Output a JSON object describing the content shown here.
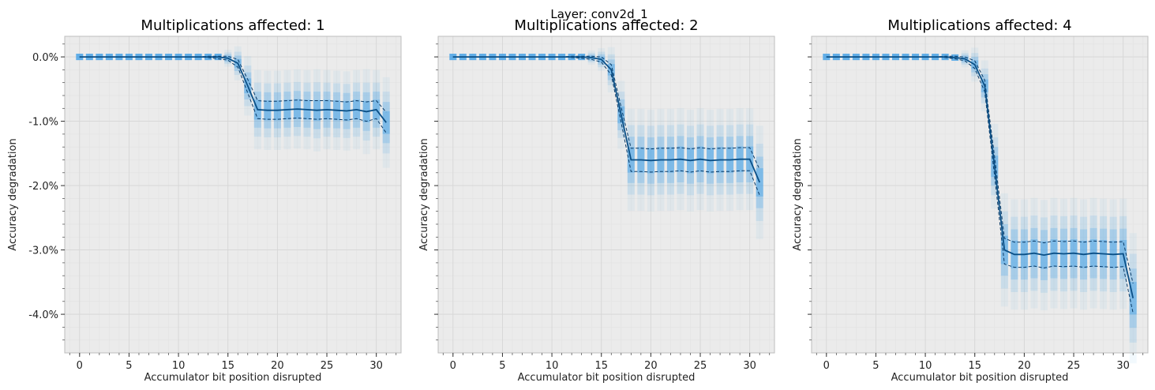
{
  "figure": {
    "suptitle": "Layer: conv2d_1"
  },
  "colors": {
    "background": "#ebebeb",
    "grid": "#d6d6d6",
    "mean_line": "#0a4f86",
    "bounds": "#0a3a66",
    "distribution": "#4aa3e6"
  },
  "chart_data": [
    {
      "type": "line",
      "title": "Multiplications affected: 1",
      "xlabel": "Accumulator bit position disrupted",
      "ylabel": "Accuracy degradation",
      "xlim": [
        -1.5,
        32.5
      ],
      "ylim": [
        -4.6,
        0.32
      ],
      "xticks": [
        0,
        5,
        10,
        15,
        20,
        25,
        30
      ],
      "yticks": [
        0.0,
        -1.0,
        -2.0,
        -3.0,
        -4.0
      ],
      "yticklabels": [
        "0.0%",
        "-1.0%",
        "-2.0%",
        "-3.0%",
        "-4.0%"
      ],
      "grid": true,
      "x": [
        0,
        1,
        2,
        3,
        4,
        5,
        6,
        7,
        8,
        9,
        10,
        11,
        12,
        13,
        14,
        15,
        16,
        17,
        18,
        19,
        20,
        21,
        22,
        23,
        24,
        25,
        26,
        27,
        28,
        29,
        30,
        31
      ],
      "series": [
        {
          "values": [
            0,
            0,
            0,
            0,
            0,
            0,
            0,
            0,
            0,
            0,
            0,
            0,
            0,
            0,
            0,
            -0.02,
            -0.1,
            -0.45,
            -0.82,
            -0.83,
            -0.83,
            -0.82,
            -0.81,
            -0.82,
            -0.83,
            -0.82,
            -0.83,
            -0.84,
            -0.82,
            -0.85,
            -0.82,
            -1.02
          ]
        },
        {
          "values": [
            0,
            0,
            0,
            0,
            0,
            0,
            0,
            0,
            0,
            0,
            0,
            0,
            0,
            0.01,
            0.01,
            0.01,
            -0.04,
            -0.35,
            -0.68,
            -0.69,
            -0.69,
            -0.68,
            -0.67,
            -0.68,
            -0.68,
            -0.68,
            -0.69,
            -0.7,
            -0.68,
            -0.7,
            -0.68,
            -0.86
          ]
        },
        {
          "values": [
            0,
            0,
            0,
            0,
            0,
            0,
            0,
            0,
            0,
            0,
            0,
            0,
            0,
            -0.01,
            -0.03,
            -0.05,
            -0.16,
            -0.56,
            -0.96,
            -0.97,
            -0.97,
            -0.96,
            -0.95,
            -0.96,
            -0.97,
            -0.96,
            -0.97,
            -0.98,
            -0.96,
            -1.0,
            -0.96,
            -1.18
          ]
        }
      ]
    },
    {
      "type": "line",
      "title": "Multiplications affected: 2",
      "xlabel": "Accumulator bit position disrupted",
      "ylabel": "Accuracy degradation",
      "xlim": [
        -1.5,
        32.5
      ],
      "ylim": [
        -4.6,
        0.32
      ],
      "xticks": [
        0,
        5,
        10,
        15,
        20,
        25,
        30
      ],
      "yticks": [
        0.0,
        -1.0,
        -2.0,
        -3.0,
        -4.0
      ],
      "yticklabels": [
        "0.0%",
        "-1.0%",
        "-2.0%",
        "-3.0%",
        "-4.0%"
      ],
      "grid": true,
      "x": [
        0,
        1,
        2,
        3,
        4,
        5,
        6,
        7,
        8,
        9,
        10,
        11,
        12,
        13,
        14,
        15,
        16,
        17,
        18,
        19,
        20,
        21,
        22,
        23,
        24,
        25,
        26,
        27,
        28,
        29,
        30,
        31
      ],
      "series": [
        {
          "values": [
            0,
            0,
            0,
            0,
            0,
            0,
            0,
            0,
            0,
            0,
            0,
            0,
            0,
            0,
            -0.01,
            -0.04,
            -0.2,
            -0.9,
            -1.6,
            -1.6,
            -1.61,
            -1.6,
            -1.6,
            -1.59,
            -1.61,
            -1.59,
            -1.61,
            -1.6,
            -1.6,
            -1.59,
            -1.59,
            -1.95
          ]
        },
        {
          "values": [
            0,
            0,
            0,
            0,
            0,
            0,
            0,
            0,
            0,
            0,
            0,
            0,
            0.01,
            0.01,
            0.01,
            0.0,
            -0.12,
            -0.78,
            -1.42,
            -1.42,
            -1.43,
            -1.42,
            -1.42,
            -1.41,
            -1.43,
            -1.41,
            -1.43,
            -1.42,
            -1.42,
            -1.41,
            -1.41,
            -1.75
          ]
        },
        {
          "values": [
            0,
            0,
            0,
            0,
            0,
            0,
            0,
            0,
            0,
            0,
            0,
            0,
            -0.01,
            -0.02,
            -0.04,
            -0.08,
            -0.28,
            -1.02,
            -1.78,
            -1.78,
            -1.79,
            -1.78,
            -1.78,
            -1.77,
            -1.79,
            -1.77,
            -1.79,
            -1.78,
            -1.78,
            -1.77,
            -1.77,
            -2.15
          ]
        }
      ]
    },
    {
      "type": "line",
      "title": "Multiplications affected: 4",
      "xlabel": "Accumulator bit position disrupted",
      "ylabel": "Accuracy degradation",
      "xlim": [
        -1.5,
        32.5
      ],
      "ylim": [
        -4.6,
        0.32
      ],
      "xticks": [
        0,
        5,
        10,
        15,
        20,
        25,
        30
      ],
      "yticks": [
        0.0,
        -1.0,
        -2.0,
        -3.0,
        -4.0
      ],
      "yticklabels": [
        "0.0%",
        "-1.0%",
        "-2.0%",
        "-3.0%",
        "-4.0%"
      ],
      "grid": true,
      "x": [
        0,
        1,
        2,
        3,
        4,
        5,
        6,
        7,
        8,
        9,
        10,
        11,
        12,
        13,
        14,
        15,
        16,
        17,
        18,
        19,
        20,
        21,
        22,
        23,
        24,
        25,
        26,
        27,
        28,
        29,
        30,
        31
      ],
      "series": [
        {
          "values": [
            0,
            0,
            0,
            0,
            0,
            0,
            0,
            0,
            0,
            0,
            0,
            0,
            0,
            -0.01,
            -0.03,
            -0.12,
            -0.45,
            -1.7,
            -3.0,
            -3.07,
            -3.07,
            -3.05,
            -3.08,
            -3.05,
            -3.06,
            -3.05,
            -3.07,
            -3.05,
            -3.06,
            -3.07,
            -3.06,
            -3.75
          ]
        },
        {
          "values": [
            0,
            0,
            0,
            0,
            0,
            0,
            0,
            0,
            0,
            0,
            0,
            0,
            0.01,
            0.01,
            0.0,
            -0.06,
            -0.36,
            -1.55,
            -2.82,
            -2.88,
            -2.88,
            -2.86,
            -2.89,
            -2.86,
            -2.87,
            -2.86,
            -2.88,
            -2.86,
            -2.87,
            -2.88,
            -2.87,
            -3.52
          ]
        },
        {
          "values": [
            0,
            0,
            0,
            0,
            0,
            0,
            0,
            0,
            0,
            0,
            0,
            0,
            -0.01,
            -0.03,
            -0.06,
            -0.18,
            -0.54,
            -1.85,
            -3.22,
            -3.27,
            -3.27,
            -3.25,
            -3.28,
            -3.25,
            -3.26,
            -3.25,
            -3.27,
            -3.25,
            -3.26,
            -3.27,
            -3.26,
            -3.98
          ]
        }
      ]
    }
  ]
}
